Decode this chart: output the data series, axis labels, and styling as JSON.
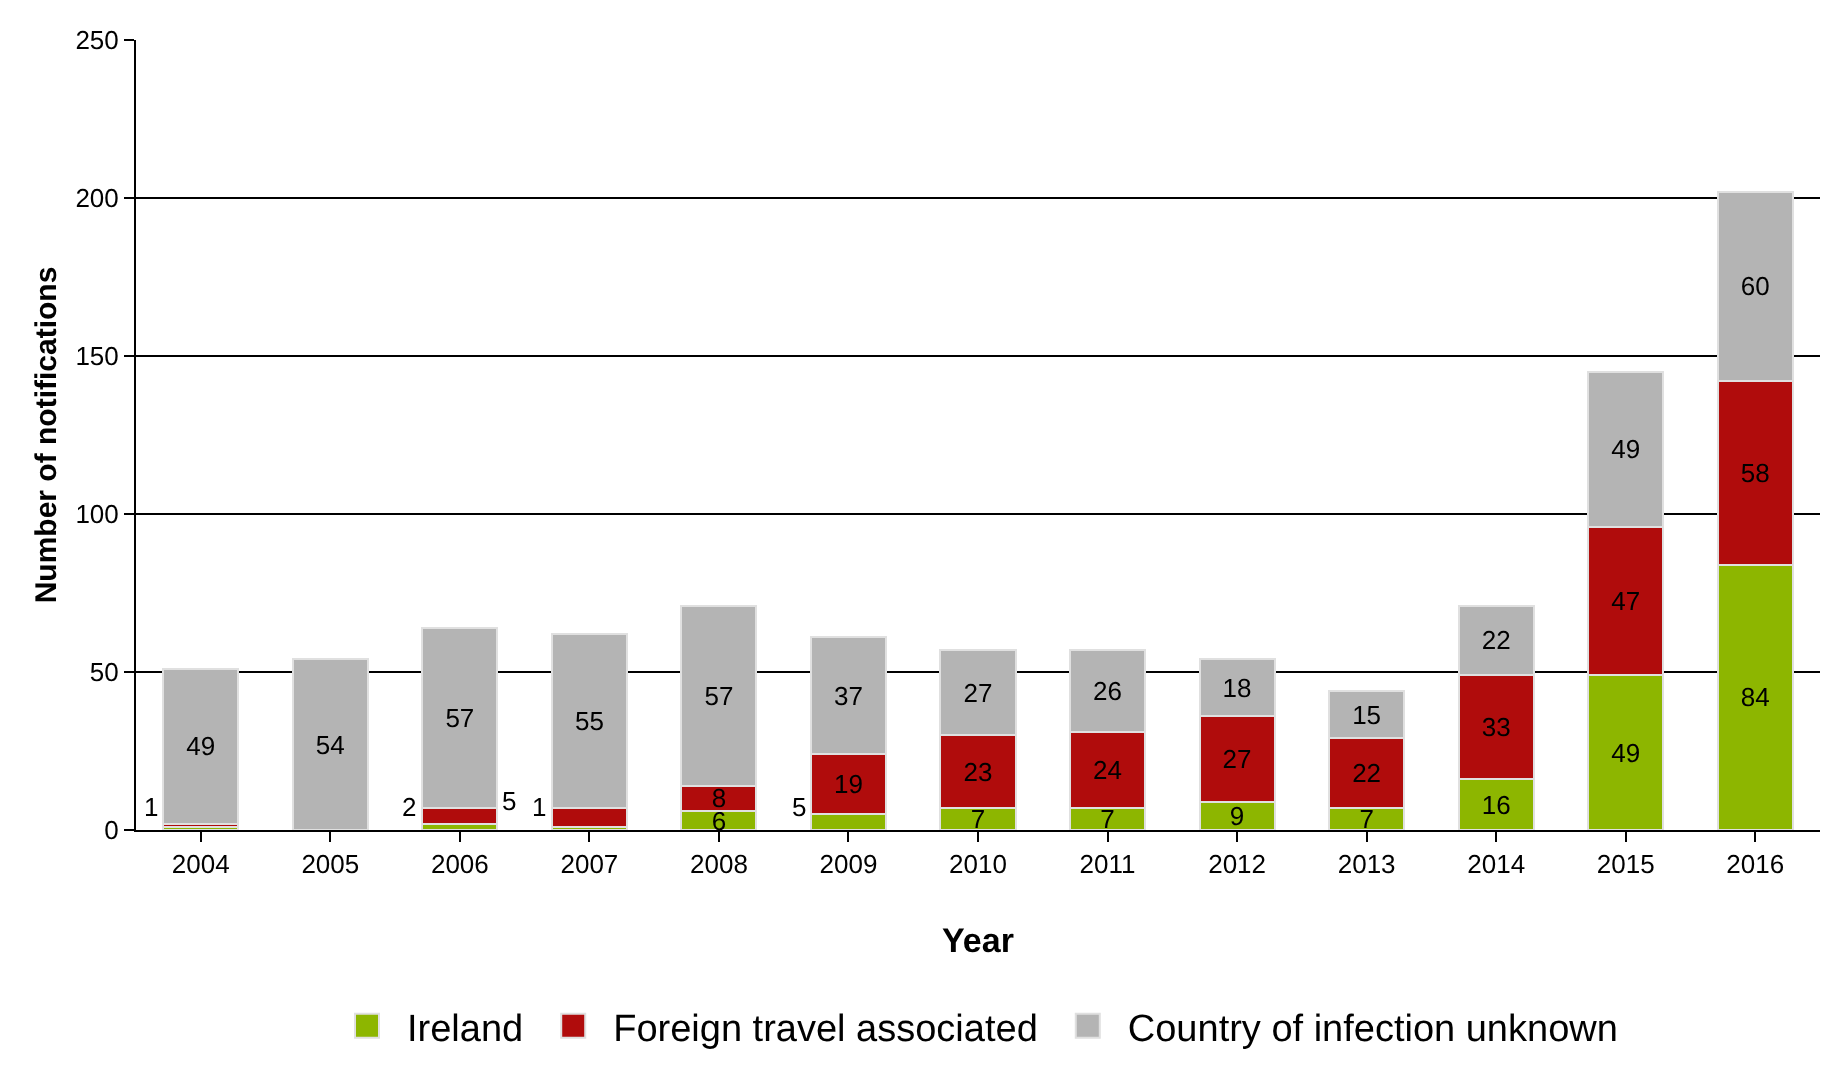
{
  "chart_data": {
    "type": "bar",
    "stacked": true,
    "xlabel": "Year",
    "ylabel": "Number of notifications",
    "categories": [
      "2004",
      "2005",
      "2006",
      "2007",
      "2008",
      "2009",
      "2010",
      "2011",
      "2012",
      "2013",
      "2014",
      "2015",
      "2016"
    ],
    "series": [
      {
        "name": "Ireland",
        "color": "#8db600",
        "values": [
          1,
          null,
          2,
          1,
          6,
          5,
          7,
          7,
          9,
          7,
          16,
          49,
          84
        ],
        "value_labels": [
          "1",
          null,
          "2",
          "1",
          "6",
          "5",
          "7",
          "7",
          "9",
          "7",
          "16",
          "49",
          "84"
        ]
      },
      {
        "name": "Foreign travel associated",
        "color": "#b00c0c",
        "values": [
          1,
          null,
          5,
          6,
          8,
          19,
          23,
          24,
          27,
          22,
          33,
          47,
          58
        ],
        "value_labels": [
          null,
          null,
          "5",
          null,
          "8",
          "19",
          "23",
          "24",
          "27",
          "22",
          "33",
          "47",
          "58"
        ]
      },
      {
        "name": "Country of infection unknown",
        "color": "#b4b4b4",
        "values": [
          49,
          54,
          57,
          55,
          57,
          37,
          27,
          26,
          18,
          15,
          22,
          49,
          60
        ],
        "value_labels": [
          "49",
          "54",
          "57",
          "55",
          "57",
          "37",
          "27",
          "26",
          "18",
          "15",
          "22",
          "49",
          "60"
        ]
      }
    ],
    "ylim": [
      0,
      250
    ],
    "yticks": [
      0,
      50,
      100,
      150,
      200,
      250
    ],
    "grid": "y",
    "legend": "bottom"
  }
}
